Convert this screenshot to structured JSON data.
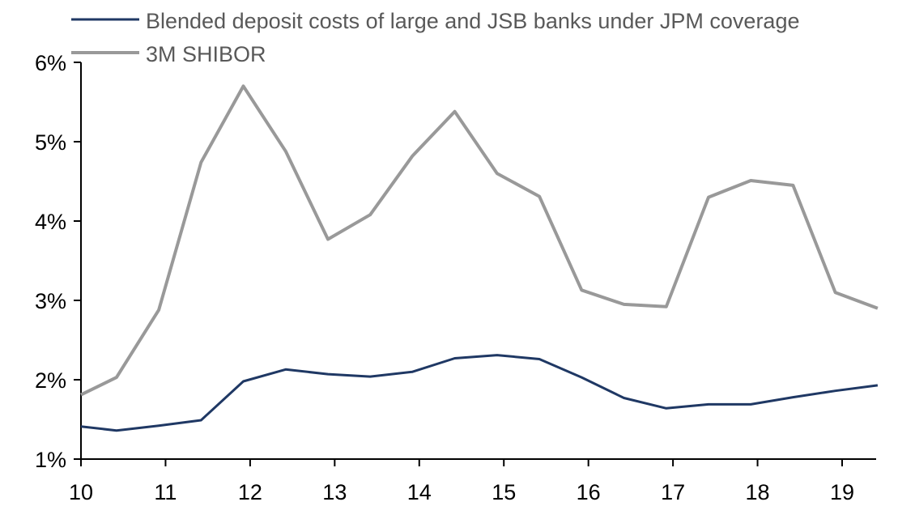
{
  "chart_data": {
    "type": "line",
    "title": "",
    "xlabel": "",
    "ylabel": "",
    "xlim": [
      10,
      19.42
    ],
    "ylim": [
      1,
      6
    ],
    "y_ticks": [
      "1%",
      "2%",
      "3%",
      "4%",
      "5%",
      "6%"
    ],
    "x_ticks": [
      "10",
      "11",
      "12",
      "13",
      "14",
      "15",
      "16",
      "17",
      "18",
      "19"
    ],
    "grid": false,
    "legend_position": "top",
    "x": [
      10.0,
      10.42,
      10.92,
      11.42,
      11.92,
      12.42,
      12.92,
      13.42,
      13.92,
      14.42,
      14.92,
      15.42,
      15.92,
      16.42,
      16.92,
      17.42,
      17.92,
      18.42,
      18.92,
      19.42
    ],
    "series": [
      {
        "name": "Blended deposit costs of large and JSB banks under JPM coverage",
        "color": "#1f3864",
        "values": [
          1.41,
          1.36,
          1.42,
          1.49,
          1.98,
          2.13,
          2.07,
          2.04,
          2.1,
          2.27,
          2.31,
          2.26,
          2.03,
          1.77,
          1.64,
          1.69,
          1.69,
          1.78,
          1.86,
          1.93
        ]
      },
      {
        "name": "3M SHIBOR",
        "color": "#999999",
        "values": [
          1.81,
          2.03,
          2.88,
          4.74,
          5.7,
          4.88,
          3.77,
          4.08,
          4.82,
          5.38,
          4.6,
          4.31,
          3.13,
          2.95,
          2.92,
          4.3,
          4.51,
          4.45,
          3.1,
          2.9
        ]
      }
    ]
  }
}
